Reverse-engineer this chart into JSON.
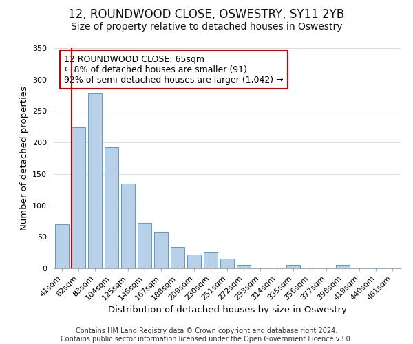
{
  "title": "12, ROUNDWOOD CLOSE, OSWESTRY, SY11 2YB",
  "subtitle": "Size of property relative to detached houses in Oswestry",
  "xlabel": "Distribution of detached houses by size in Oswestry",
  "ylabel": "Number of detached properties",
  "categories": [
    "41sqm",
    "62sqm",
    "83sqm",
    "104sqm",
    "125sqm",
    "146sqm",
    "167sqm",
    "188sqm",
    "209sqm",
    "230sqm",
    "251sqm",
    "272sqm",
    "293sqm",
    "314sqm",
    "335sqm",
    "356sqm",
    "377sqm",
    "398sqm",
    "419sqm",
    "440sqm",
    "461sqm"
  ],
  "values": [
    70,
    224,
    279,
    193,
    134,
    72,
    58,
    34,
    22,
    25,
    15,
    5,
    0,
    0,
    6,
    0,
    0,
    6,
    0,
    1,
    0
  ],
  "bar_color": "#b8d0e8",
  "bar_edge_color": "#5a9ac8",
  "marker_line_color": "#cc0000",
  "annotation_text": "12 ROUNDWOOD CLOSE: 65sqm\n← 8% of detached houses are smaller (91)\n92% of semi-detached houses are larger (1,042) →",
  "annotation_box_color": "#ffffff",
  "annotation_box_edge_color": "#cc0000",
  "ylim": [
    0,
    350
  ],
  "yticks": [
    0,
    50,
    100,
    150,
    200,
    250,
    300,
    350
  ],
  "footer_line1": "Contains HM Land Registry data © Crown copyright and database right 2024.",
  "footer_line2": "Contains public sector information licensed under the Open Government Licence v3.0.",
  "title_fontsize": 12,
  "subtitle_fontsize": 10,
  "axis_label_fontsize": 9.5,
  "tick_fontsize": 8,
  "annotation_fontsize": 9,
  "footer_fontsize": 7
}
